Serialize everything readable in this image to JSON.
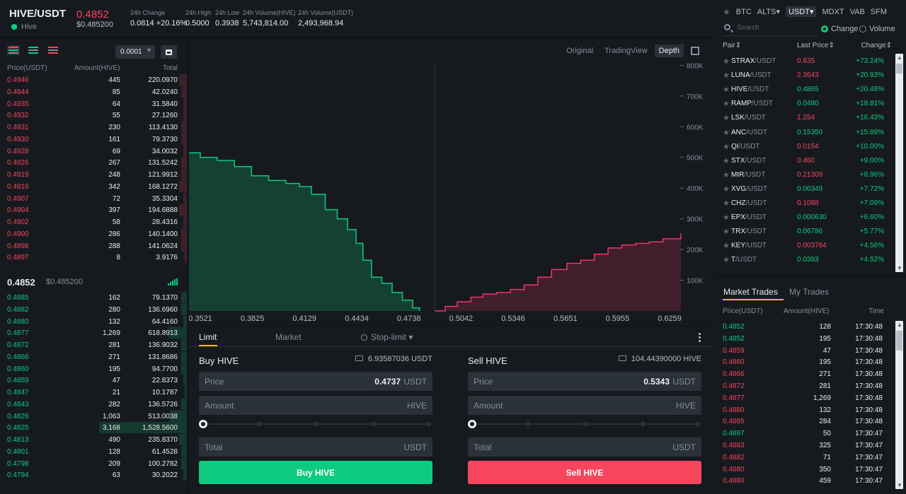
{
  "header": {
    "symbol": "HIVE/USDT",
    "asset_name": "Hive",
    "last_price": "0.4852",
    "last_price_usd": "$0.485200",
    "stats": [
      {
        "label": "24h Change",
        "value": "0.0814 +20.16%",
        "color": "#0ecb81"
      },
      {
        "label": "24h High",
        "value": "0.5000",
        "color": "#eaecef"
      },
      {
        "label": "24h Low",
        "value": "0.3938",
        "color": "#eaecef"
      },
      {
        "label": "24h Volume(HIVE)",
        "value": "5,743,814.00",
        "color": "#eaecef"
      },
      {
        "label": "24h Volume(USDT)",
        "value": "2,493,968.94",
        "color": "#eaecef"
      }
    ]
  },
  "orderbook": {
    "precision": "0.0001",
    "headers": {
      "price": "Price(USDT)",
      "amount": "Amount(HIVE)",
      "total": "Total"
    },
    "asks": [
      {
        "price": "0.4946",
        "amount": "445",
        "total": "220.0970",
        "depth": 0.04
      },
      {
        "price": "0.4944",
        "amount": "85",
        "total": "42.0240",
        "depth": 0.03
      },
      {
        "price": "0.4935",
        "amount": "64",
        "total": "31.5840",
        "depth": 0.02
      },
      {
        "price": "0.4932",
        "amount": "55",
        "total": "27.1260",
        "depth": 0.02
      },
      {
        "price": "0.4931",
        "amount": "230",
        "total": "113.4130",
        "depth": 0.03
      },
      {
        "price": "0.4930",
        "amount": "161",
        "total": "79.3730",
        "depth": 0.03
      },
      {
        "price": "0.4928",
        "amount": "69",
        "total": "34.0032",
        "depth": 0.02
      },
      {
        "price": "0.4926",
        "amount": "267",
        "total": "131.5242",
        "depth": 0.03
      },
      {
        "price": "0.4919",
        "amount": "248",
        "total": "121.9912",
        "depth": 0.03
      },
      {
        "price": "0.4916",
        "amount": "342",
        "total": "168.1272",
        "depth": 0.04
      },
      {
        "price": "0.4907",
        "amount": "72",
        "total": "35.3304",
        "depth": 0.02
      },
      {
        "price": "0.4904",
        "amount": "397",
        "total": "194.6888",
        "depth": 0.04
      },
      {
        "price": "0.4902",
        "amount": "58",
        "total": "28.4316",
        "depth": 0.02
      },
      {
        "price": "0.4900",
        "amount": "286",
        "total": "140.1400",
        "depth": 0.03
      },
      {
        "price": "0.4898",
        "amount": "288",
        "total": "141.0624",
        "depth": 0.03
      },
      {
        "price": "0.4897",
        "amount": "8",
        "total": "3.9176",
        "depth": 0.01
      }
    ],
    "mid_price": "0.4852",
    "mid_price_usd": "$0.485200",
    "bids": [
      {
        "price": "0.4885",
        "amount": "162",
        "total": "79.1370",
        "depth": 0.03
      },
      {
        "price": "0.4882",
        "amount": "280",
        "total": "136.6960",
        "depth": 0.03
      },
      {
        "price": "0.4880",
        "amount": "132",
        "total": "64.4160",
        "depth": 0.02
      },
      {
        "price": "0.4877",
        "amount": "1,269",
        "total": "618.8913",
        "depth": 0.1
      },
      {
        "price": "0.4872",
        "amount": "281",
        "total": "136.9032",
        "depth": 0.03
      },
      {
        "price": "0.4866",
        "amount": "271",
        "total": "131.8686",
        "depth": 0.03
      },
      {
        "price": "0.4860",
        "amount": "195",
        "total": "94.7700",
        "depth": 0.03
      },
      {
        "price": "0.4859",
        "amount": "47",
        "total": "22.8373",
        "depth": 0.02
      },
      {
        "price": "0.4847",
        "amount": "21",
        "total": "10.1787",
        "depth": 0.01
      },
      {
        "price": "0.4843",
        "amount": "282",
        "total": "136.5726",
        "depth": 0.03
      },
      {
        "price": "0.4826",
        "amount": "1,063",
        "total": "513.0038",
        "depth": 0.09
      },
      {
        "price": "0.4825",
        "amount": "3,168",
        "total": "1,528.5600",
        "depth": 0.47
      },
      {
        "price": "0.4813",
        "amount": "490",
        "total": "235.8370",
        "depth": 0.04
      },
      {
        "price": "0.4801",
        "amount": "128",
        "total": "61.4528",
        "depth": 0.03
      },
      {
        "price": "0.4798",
        "amount": "209",
        "total": "100.2782",
        "depth": 0.03
      },
      {
        "price": "0.4794",
        "amount": "63",
        "total": "30.2022",
        "depth": 0.02
      }
    ]
  },
  "chart_tabs": [
    "Original",
    "TradingView",
    "Depth"
  ],
  "chart_active_tab": "Depth",
  "chart_data": {
    "type": "area",
    "title": "",
    "x_ticks": [
      "0.3521",
      "0.3825",
      "0.4129",
      "0.4434",
      "0.4738",
      "0.5042",
      "0.5346",
      "0.5651",
      "0.5955",
      "0.6259"
    ],
    "y_ticks": [
      "100K",
      "200K",
      "300K",
      "400K",
      "500K",
      "600K",
      "700K",
      "800K"
    ],
    "xlim": [
      0.3455,
      0.6325
    ],
    "ylim": [
      0,
      840000
    ],
    "series": [
      {
        "color": "#0ecb81",
        "points": [
          [
            0.3455,
            515000
          ],
          [
            0.3521,
            500000
          ],
          [
            0.362,
            490000
          ],
          [
            0.372,
            470000
          ],
          [
            0.382,
            440000
          ],
          [
            0.392,
            425000
          ],
          [
            0.402,
            415000
          ],
          [
            0.41,
            405000
          ],
          [
            0.417,
            380000
          ],
          [
            0.425,
            330000
          ],
          [
            0.432,
            300000
          ],
          [
            0.438,
            265000
          ],
          [
            0.443,
            220000
          ],
          [
            0.447,
            165000
          ],
          [
            0.452,
            110000
          ],
          [
            0.458,
            90000
          ],
          [
            0.464,
            60000
          ],
          [
            0.47,
            35000
          ],
          [
            0.476,
            10000
          ],
          [
            0.48,
            0
          ]
        ]
      },
      {
        "color": "#f0366a",
        "points": [
          [
            0.489,
            0
          ],
          [
            0.495,
            15000
          ],
          [
            0.502,
            30000
          ],
          [
            0.51,
            45000
          ],
          [
            0.517,
            55000
          ],
          [
            0.525,
            60000
          ],
          [
            0.533,
            70000
          ],
          [
            0.541,
            85000
          ],
          [
            0.549,
            110000
          ],
          [
            0.557,
            135000
          ],
          [
            0.566,
            155000
          ],
          [
            0.574,
            165000
          ],
          [
            0.582,
            185000
          ],
          [
            0.59,
            205000
          ],
          [
            0.598,
            215000
          ],
          [
            0.606,
            220000
          ],
          [
            0.614,
            225000
          ],
          [
            0.622,
            235000
          ],
          [
            0.6325,
            252000
          ]
        ]
      }
    ]
  },
  "trade_form": {
    "tabs": {
      "limit": "Limit",
      "market": "Market",
      "stop_limit": "Stop-limit"
    },
    "buy": {
      "title": "Buy HIVE",
      "balance": "6.93587036 USDT",
      "price_label": "Price",
      "price_value": "0.4737",
      "price_unit": "USDT",
      "amount_label": "Amount",
      "amount_unit": "HIVE",
      "total_label": "Total",
      "total_unit": "USDT",
      "button": "Buy HIVE"
    },
    "sell": {
      "title": "Sell HIVE",
      "balance": "104.44390000 HIVE",
      "price_label": "Price",
      "price_value": "0.5343",
      "price_unit": "USDT",
      "amount_label": "Amount",
      "amount_unit": "HIVE",
      "total_label": "Total",
      "total_unit": "USDT",
      "button": "Sell HIVE"
    },
    "buy_color": "#0ecb81",
    "sell_color": "#f6465d"
  },
  "market": {
    "tabs": [
      "BTC",
      "ALTS",
      "USDT",
      "MDXT",
      "VAB",
      "SFM"
    ],
    "active_tab": "USDT",
    "search_placeholder": "Search",
    "sort_options": {
      "change": "Change",
      "volume": "Volume"
    },
    "headers": {
      "pair": "Pair",
      "last_price": "Last Price",
      "change": "Change"
    },
    "pairs": [
      {
        "base": "STRAX",
        "quote": "/USDT",
        "price": "0.835",
        "change": "+73.24%",
        "dir": "down"
      },
      {
        "base": "LUNA",
        "quote": "/USDT",
        "price": "2.3643",
        "change": "+20.93%",
        "dir": "down"
      },
      {
        "base": "HIVE",
        "quote": "/USDT",
        "price": "0.4865",
        "change": "+20.48%",
        "dir": "up"
      },
      {
        "base": "RAMP",
        "quote": "/USDT",
        "price": "0.0480",
        "change": "+18.81%",
        "dir": "up"
      },
      {
        "base": "LSK",
        "quote": "/USDT",
        "price": "1.254",
        "change": "+16.43%",
        "dir": "down"
      },
      {
        "base": "ANC",
        "quote": "/USDT",
        "price": "0.15350",
        "change": "+15.89%",
        "dir": "up"
      },
      {
        "base": "QI",
        "quote": "/USDT",
        "price": "0.0154",
        "change": "+10.00%",
        "dir": "down"
      },
      {
        "base": "STX",
        "quote": "/USDT",
        "price": "0.460",
        "change": "+9.00%",
        "dir": "down"
      },
      {
        "base": "MIR",
        "quote": "/USDT",
        "price": "0.21309",
        "change": "+8.96%",
        "dir": "down"
      },
      {
        "base": "XVG",
        "quote": "/USDT",
        "price": "0.00349",
        "change": "+7.72%",
        "dir": "up"
      },
      {
        "base": "CHZ",
        "quote": "/USDT",
        "price": "0.1088",
        "change": "+7.09%",
        "dir": "down"
      },
      {
        "base": "EPX",
        "quote": "/USDT",
        "price": "0.000630",
        "change": "+6.60%",
        "dir": "up"
      },
      {
        "base": "TRX",
        "quote": "/USDT",
        "price": "0.06786",
        "change": "+5.77%",
        "dir": "up"
      },
      {
        "base": "KEY",
        "quote": "/USDT",
        "price": "0.003764",
        "change": "+4.56%",
        "dir": "down"
      },
      {
        "base": "T",
        "quote": "/USDT",
        "price": "0.0393",
        "change": "+4.52%",
        "dir": "up"
      }
    ]
  },
  "trades": {
    "tabs": {
      "market": "Market Trades",
      "mine": "My Trades"
    },
    "headers": {
      "price": "Price(USDT)",
      "amount": "Amount(HIVE)",
      "time": "Time"
    },
    "rows": [
      {
        "price": "0.4852",
        "amount": "128",
        "time": "17:30:48",
        "dir": "up"
      },
      {
        "price": "0.4852",
        "amount": "195",
        "time": "17:30:48",
        "dir": "up"
      },
      {
        "price": "0.4859",
        "amount": "47",
        "time": "17:30:48",
        "dir": "down"
      },
      {
        "price": "0.4860",
        "amount": "195",
        "time": "17:30:48",
        "dir": "down"
      },
      {
        "price": "0.4866",
        "amount": "271",
        "time": "17:30:48",
        "dir": "down"
      },
      {
        "price": "0.4872",
        "amount": "281",
        "time": "17:30:48",
        "dir": "down"
      },
      {
        "price": "0.4877",
        "amount": "1,269",
        "time": "17:30:48",
        "dir": "down"
      },
      {
        "price": "0.4880",
        "amount": "132",
        "time": "17:30:48",
        "dir": "down"
      },
      {
        "price": "0.4885",
        "amount": "284",
        "time": "17:30:48",
        "dir": "down"
      },
      {
        "price": "0.4897",
        "amount": "50",
        "time": "17:30:47",
        "dir": "up"
      },
      {
        "price": "0.4883",
        "amount": "325",
        "time": "17:30:47",
        "dir": "down"
      },
      {
        "price": "0.4882",
        "amount": "71",
        "time": "17:30:47",
        "dir": "down"
      },
      {
        "price": "0.4880",
        "amount": "350",
        "time": "17:30:47",
        "dir": "down"
      },
      {
        "price": "0.4880",
        "amount": "459",
        "time": "17:30:47",
        "dir": "down"
      }
    ]
  }
}
